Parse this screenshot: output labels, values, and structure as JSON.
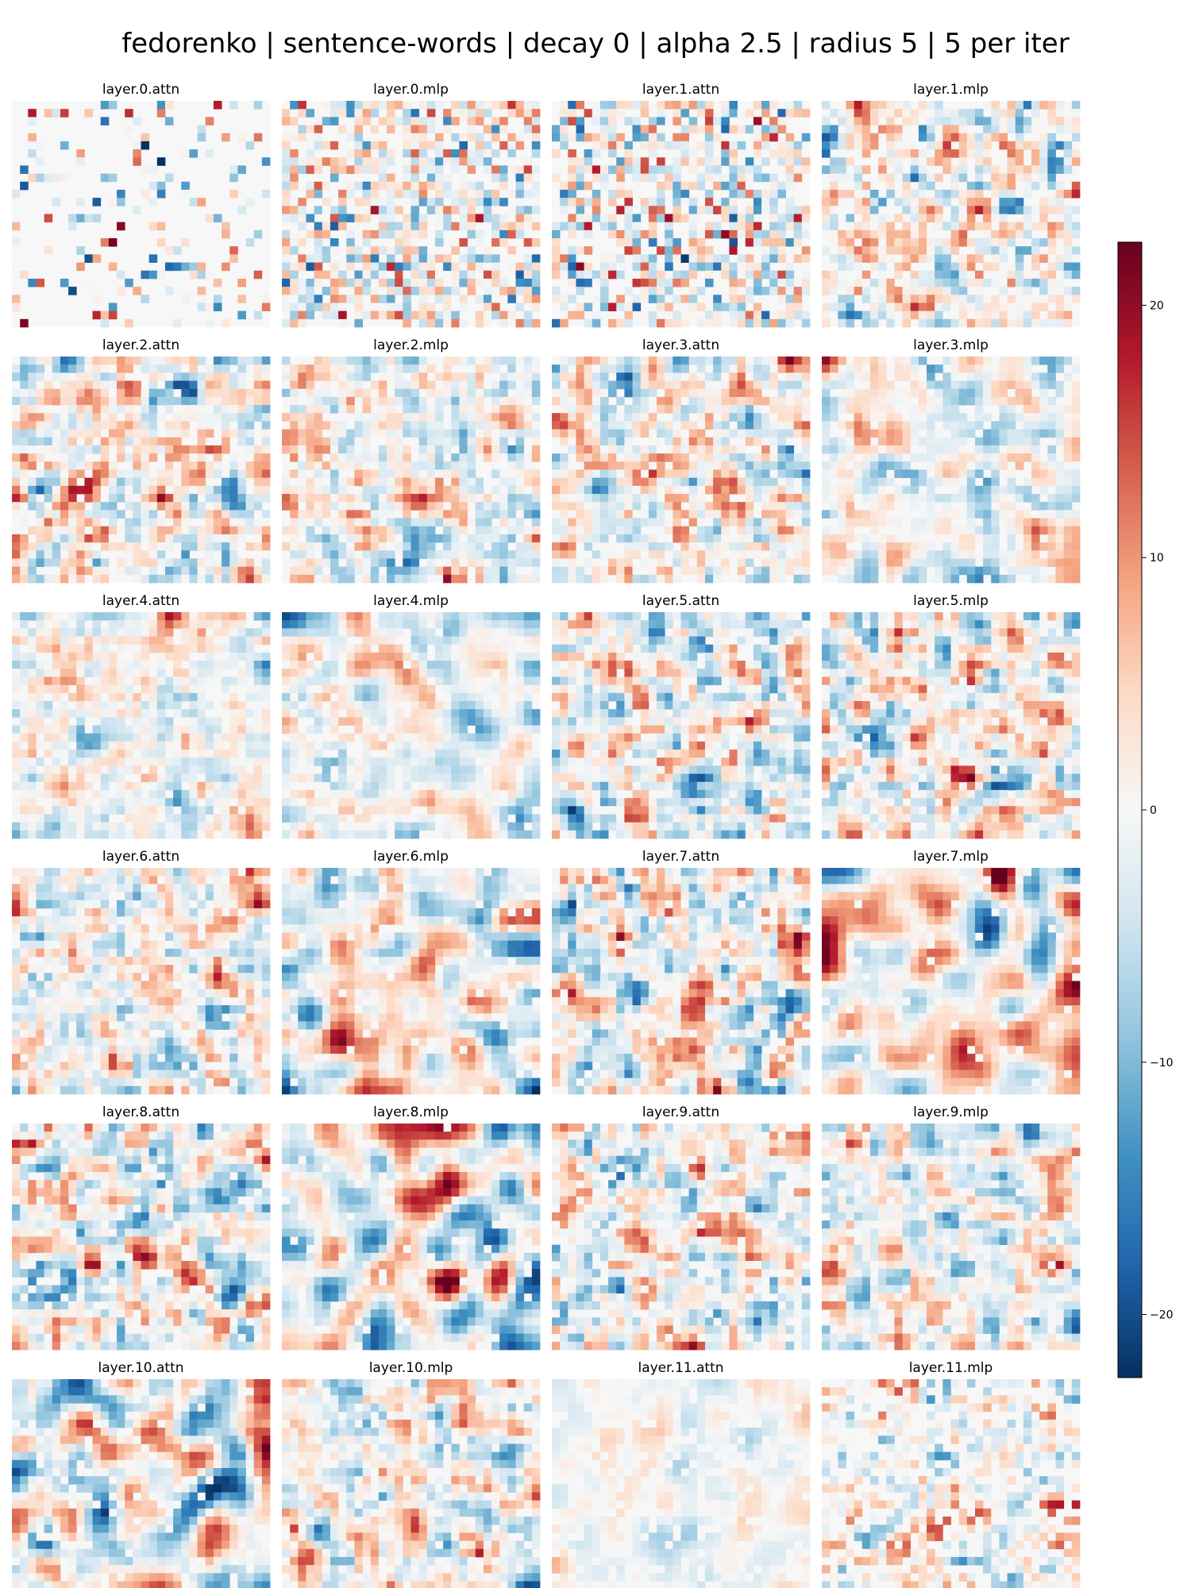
{
  "figure": {
    "title": "fedorenko | sentence-words | decay 0 | alpha 2.5 | radius 5 | 5 per iter"
  },
  "chart_data": {
    "type": "heatmap",
    "title": "fedorenko | sentence-words | decay 0 | alpha 2.5 | radius 5 | 5 per iter",
    "xlabel": "",
    "ylabel": "",
    "grid": false,
    "grid_rows": 28,
    "grid_cols": 32,
    "colormap": "RdBu_r",
    "vmin": -22.5,
    "vmax": 22.5,
    "panels": [
      {
        "title": "layer.0.attn",
        "density": 0.18,
        "smooth": 0,
        "amp": 20,
        "seed": 11
      },
      {
        "title": "layer.0.mlp",
        "density": 0.72,
        "smooth": 0,
        "amp": 14,
        "seed": 23
      },
      {
        "title": "layer.1.attn",
        "density": 0.7,
        "smooth": 0,
        "amp": 16,
        "seed": 37
      },
      {
        "title": "layer.1.mlp",
        "density": 0.78,
        "smooth": 1,
        "amp": 14,
        "seed": 41
      },
      {
        "title": "layer.2.attn",
        "density": 0.88,
        "smooth": 1,
        "amp": 15,
        "seed": 53
      },
      {
        "title": "layer.2.mlp",
        "density": 0.88,
        "smooth": 1,
        "amp": 15,
        "seed": 67
      },
      {
        "title": "layer.3.attn",
        "density": 0.88,
        "smooth": 1,
        "amp": 16,
        "seed": 71
      },
      {
        "title": "layer.3.mlp",
        "density": 0.85,
        "smooth": 2,
        "amp": 15,
        "seed": 83
      },
      {
        "title": "layer.4.attn",
        "density": 0.9,
        "smooth": 1,
        "amp": 14,
        "seed": 97
      },
      {
        "title": "layer.4.mlp",
        "density": 0.9,
        "smooth": 2,
        "amp": 15,
        "seed": 101
      },
      {
        "title": "layer.5.attn",
        "density": 0.9,
        "smooth": 1,
        "amp": 16,
        "seed": 113
      },
      {
        "title": "layer.5.mlp",
        "density": 0.9,
        "smooth": 1,
        "amp": 16,
        "seed": 127
      },
      {
        "title": "layer.6.attn",
        "density": 0.9,
        "smooth": 1,
        "amp": 15,
        "seed": 131
      },
      {
        "title": "layer.6.mlp",
        "density": 0.92,
        "smooth": 2,
        "amp": 17,
        "seed": 149
      },
      {
        "title": "layer.7.attn",
        "density": 0.92,
        "smooth": 1,
        "amp": 16,
        "seed": 157
      },
      {
        "title": "layer.7.mlp",
        "density": 0.95,
        "smooth": 3,
        "amp": 20,
        "seed": 163
      },
      {
        "title": "layer.8.attn",
        "density": 0.9,
        "smooth": 1,
        "amp": 15,
        "seed": 173
      },
      {
        "title": "layer.8.mlp",
        "density": 0.95,
        "smooth": 3,
        "amp": 20,
        "seed": 181
      },
      {
        "title": "layer.9.attn",
        "density": 0.88,
        "smooth": 1,
        "amp": 15,
        "seed": 191
      },
      {
        "title": "layer.9.mlp",
        "density": 0.92,
        "smooth": 1,
        "amp": 16,
        "seed": 197
      },
      {
        "title": "layer.10.attn",
        "density": 0.9,
        "smooth": 2,
        "amp": 17,
        "seed": 211
      },
      {
        "title": "layer.10.mlp",
        "density": 0.88,
        "smooth": 1,
        "amp": 15,
        "seed": 223
      },
      {
        "title": "layer.11.attn",
        "density": 0.8,
        "smooth": 2,
        "amp": 8,
        "seed": 227
      },
      {
        "title": "layer.11.mlp",
        "density": 0.6,
        "smooth": 1,
        "amp": 14,
        "seed": 229
      }
    ],
    "colorbar": {
      "ticks": [
        20,
        10,
        0,
        -10,
        -20
      ],
      "tick_labels": [
        "20",
        "10",
        "0",
        "−10",
        "−20"
      ]
    }
  }
}
